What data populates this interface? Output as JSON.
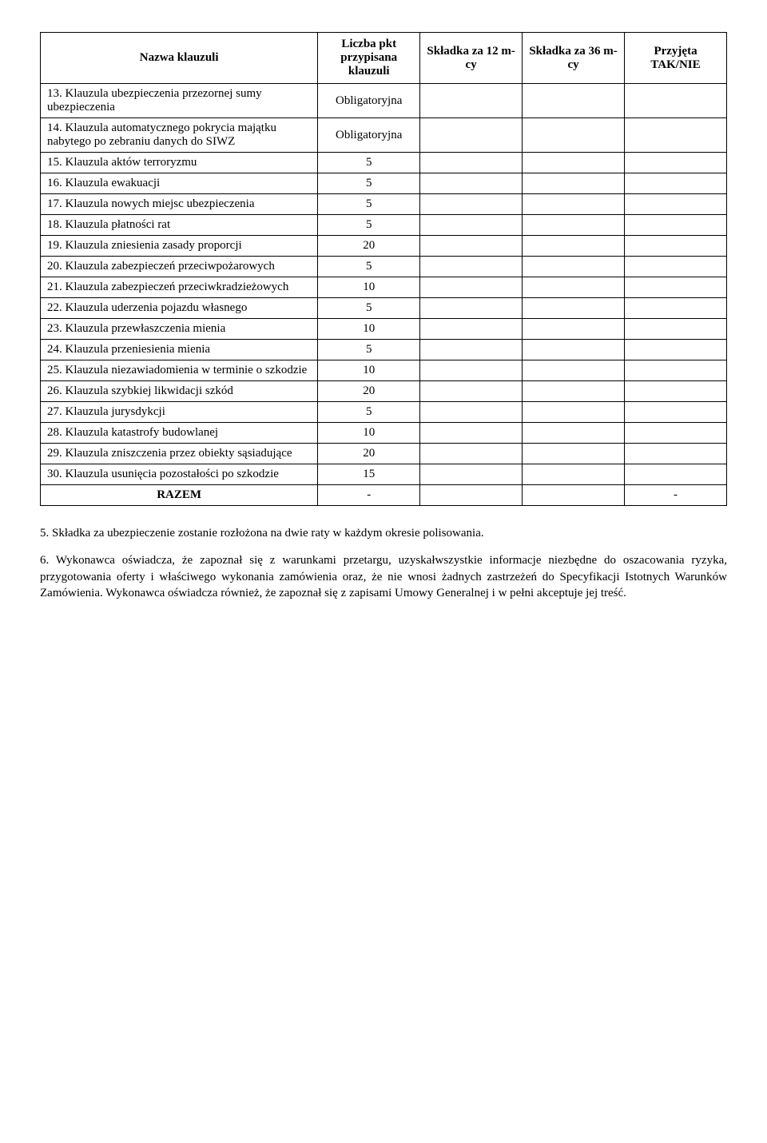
{
  "table": {
    "headers": {
      "name": "Nazwa klauzuli",
      "points": "Liczba pkt przypisana klauzuli",
      "fee12": "Składka za 12 m-cy",
      "fee36": "Składka za 36 m-cy",
      "accepted": "Przyjęta TAK/NIE"
    },
    "rows": [
      {
        "name": "13. Klauzula ubezpieczenia przezornej sumy ubezpieczenia",
        "points": "Obligatoryjna"
      },
      {
        "name": "14. Klauzula automatycznego pokrycia majątku nabytego po zebraniu danych do SIWZ",
        "points": "Obligatoryjna"
      },
      {
        "name": "15. Klauzula aktów terroryzmu",
        "points": "5"
      },
      {
        "name": "16. Klauzula ewakuacji",
        "points": "5"
      },
      {
        "name": "17. Klauzula nowych miejsc ubezpieczenia",
        "points": "5"
      },
      {
        "name": "18. Klauzula płatności rat",
        "points": "5"
      },
      {
        "name": "19. Klauzula zniesienia zasady proporcji",
        "points": "20"
      },
      {
        "name": "20. Klauzula zabezpieczeń przeciwpożarowych",
        "points": "5"
      },
      {
        "name": "21. Klauzula zabezpieczeń przeciwkradzieżowych",
        "points": "10"
      },
      {
        "name": "22. Klauzula uderzenia pojazdu własnego",
        "points": "5"
      },
      {
        "name": "23. Klauzula przewłaszczenia mienia",
        "points": "10"
      },
      {
        "name": "24. Klauzula przeniesienia mienia",
        "points": "5"
      },
      {
        "name": "25. Klauzula niezawiadomienia w terminie o szkodzie",
        "points": "10"
      },
      {
        "name": "26. Klauzula szybkiej likwidacji szkód",
        "points": "20"
      },
      {
        "name": "27. Klauzula jurysdykcji",
        "points": "5"
      },
      {
        "name": "28. Klauzula katastrofy budowlanej",
        "points": "10"
      },
      {
        "name": "29. Klauzula zniszczenia przez obiekty sąsiadujące",
        "points": "20"
      },
      {
        "name": "30. Klauzula usunięcia pozostałości po szkodzie",
        "points": "15"
      }
    ],
    "total": {
      "name": "RAZEM",
      "points": "-",
      "accepted": "-"
    }
  },
  "paragraphs": {
    "p5": "5. Składka za ubezpieczenie zostanie rozłożona na dwie raty w każdym okresie polisowania.",
    "p6": "6. Wykonawca oświadcza, że zapoznał się z warunkami przetargu, uzyskałwszystkie informacje niezbędne do oszacowania ryzyka, przygotowania oferty i właściwego wykonania zamówienia oraz, że nie wnosi żadnych zastrzeżeń do Specyfikacji Istotnych Warunków Zamówienia. Wykonawca oświadcza również, że zapoznał się z zapisami Umowy Generalnej i w pełni akceptuje jej treść."
  }
}
